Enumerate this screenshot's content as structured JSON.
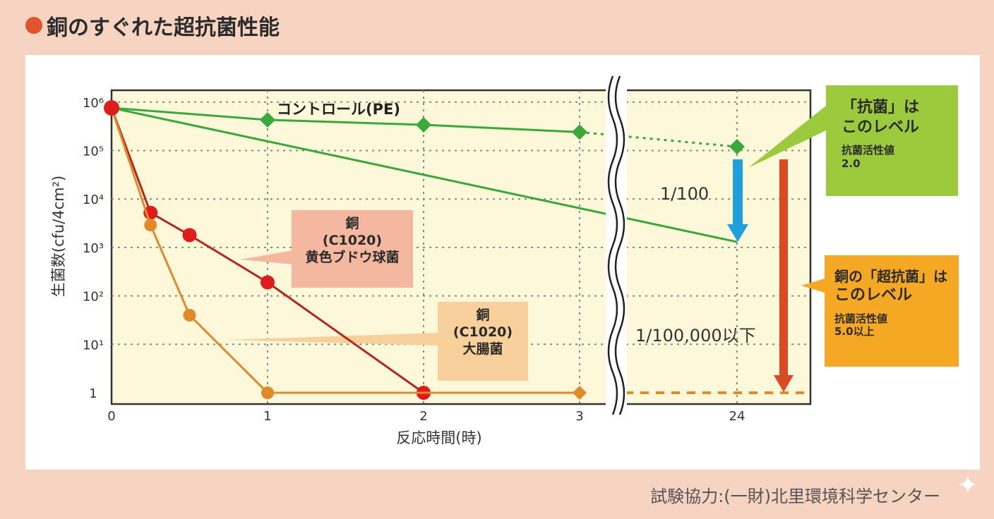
{
  "title": "銅のすぐれた超抗菌性能",
  "footer": "試験協力:(一財)北里環境科学センター",
  "chart_data": {
    "type": "line",
    "xlabel": "反応時間(時)",
    "ylabel": "生菌数(cfu/4cm²)",
    "y_scale": "log",
    "ylim": [
      1,
      1000000
    ],
    "x_ticks": [
      "0",
      "1",
      "2",
      "3",
      "24"
    ],
    "y_ticks": [
      "1",
      "10¹",
      "10²",
      "10³",
      "10⁴",
      "10⁵",
      "10⁶"
    ],
    "axis_break": "between 3 and 24",
    "grid": true,
    "series": [
      {
        "name": "コントロール(PE)",
        "color": "#3aa83a",
        "marker": "diamond",
        "x": [
          0,
          1,
          2,
          3,
          24
        ],
        "y": [
          760000,
          430000,
          340000,
          240000,
          120000
        ],
        "dashed_after": 3
      },
      {
        "color": "#3aa83a",
        "marker": "none",
        "x": [
          0,
          24
        ],
        "y": [
          760000,
          1300
        ]
      },
      {
        "name": "銅(C1020)黄色ブドウ球菌",
        "color": "#b5261c",
        "marker": "circle",
        "x": [
          0,
          0.25,
          0.5,
          1,
          2
        ],
        "y": [
          760000,
          5200,
          1800,
          190,
          1
        ]
      },
      {
        "name": "銅(C1020)大腸菌",
        "color": "#e08a2a",
        "marker": "circle",
        "x": [
          0,
          0.25,
          0.5,
          1,
          3,
          24
        ],
        "y": [
          760000,
          2900,
          40,
          1,
          1,
          1
        ],
        "dashed_after": 3
      }
    ],
    "annotations": {
      "arrow_small": "1/100",
      "arrow_large": "1/100,000以下",
      "antibacterial_box": {
        "line1": "「抗菌」は",
        "line2": "このレベル",
        "line3": "抗菌活性値",
        "line4": "2.0"
      },
      "super_box": {
        "line1": "銅の「超抗菌」は",
        "line2": "このレベル",
        "line3": "抗菌活性値",
        "line4": "5.0以上"
      },
      "staph_label": {
        "line1": "銅",
        "line2": "(C1020)",
        "line3": "黄色ブドウ球菌"
      },
      "ecoli_label": {
        "line1": "銅",
        "line2": "(C1020)",
        "line3": "大腸菌"
      }
    }
  }
}
